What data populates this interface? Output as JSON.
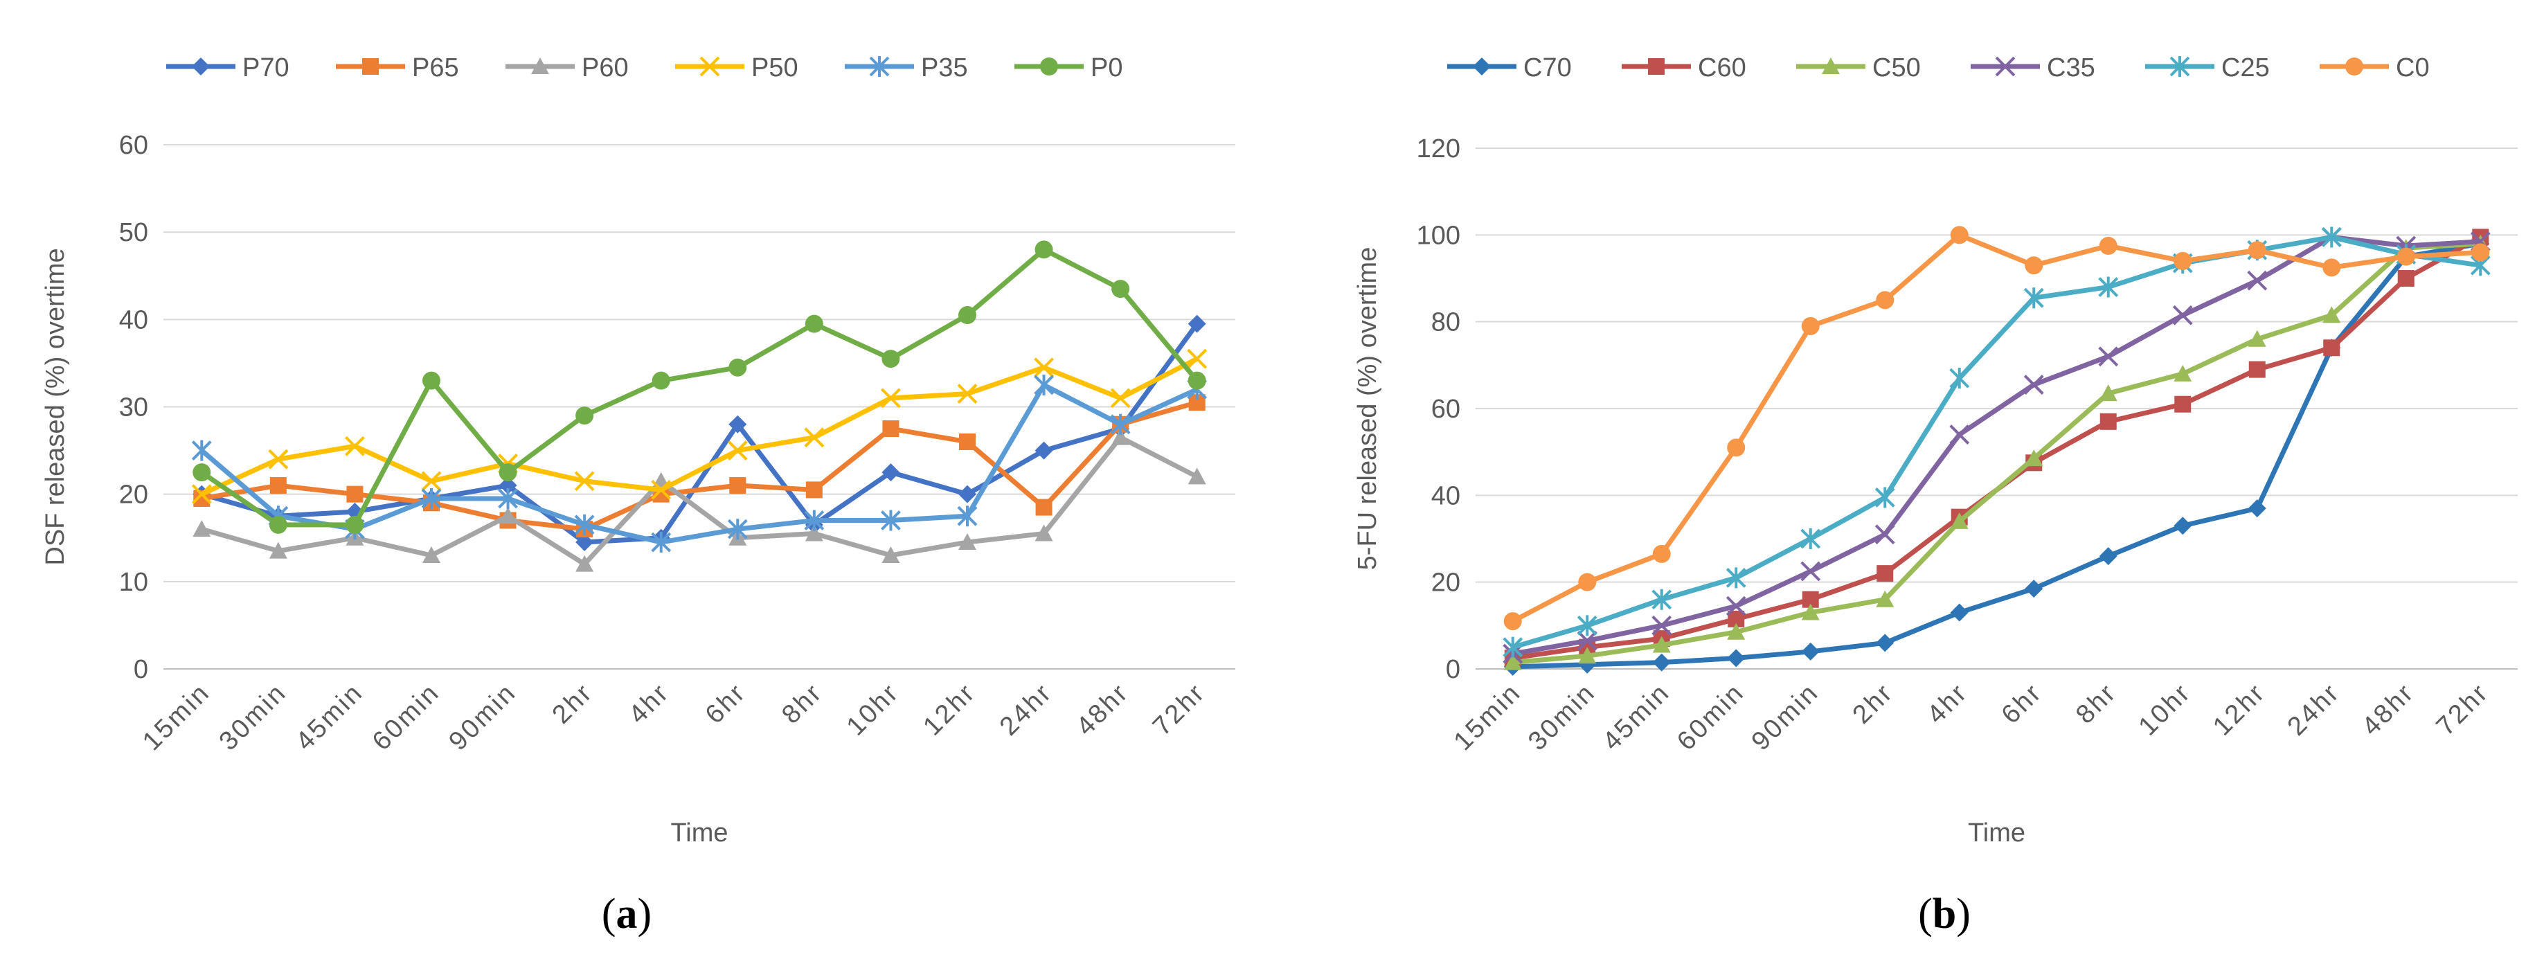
{
  "chart_data": [
    {
      "type": "line",
      "panel_label": "(a)",
      "title": "",
      "xlabel": "Time",
      "ylabel": "DSF released (%) overtime",
      "ylim": [
        0,
        60
      ],
      "yticks": [
        0,
        10,
        20,
        30,
        40,
        50,
        60
      ],
      "grid": true,
      "legend_position": "top",
      "categories": [
        "15min",
        "30min",
        "45min",
        "60min",
        "90min",
        "2hr",
        "4hr",
        "6hr",
        "8hr",
        "10hr",
        "12hr",
        "24hr",
        "48hr",
        "72hr"
      ],
      "series": [
        {
          "name": "P70",
          "color": "#4472c4",
          "marker": "diamond",
          "values": [
            20,
            17.5,
            18,
            19.5,
            21,
            14.5,
            15,
            28,
            16.5,
            22.5,
            20,
            25,
            27.5,
            39.5
          ]
        },
        {
          "name": "P65",
          "color": "#ed7d31",
          "marker": "square",
          "values": [
            19.5,
            21,
            20,
            19,
            17,
            16,
            20,
            21,
            20.5,
            27.5,
            26,
            18.5,
            28,
            30.5
          ]
        },
        {
          "name": "P60",
          "color": "#a5a5a5",
          "marker": "triangle",
          "values": [
            16,
            13.5,
            15,
            13,
            17.5,
            12,
            21.5,
            15,
            15.5,
            13,
            14.5,
            15.5,
            26.5,
            22
          ]
        },
        {
          "name": "P50",
          "color": "#ffc000",
          "marker": "x",
          "values": [
            20,
            24,
            25.5,
            21.5,
            23.5,
            21.5,
            20.5,
            25,
            26.5,
            31,
            31.5,
            34.5,
            31,
            35.5
          ]
        },
        {
          "name": "P35",
          "color": "#5b9bd5",
          "marker": "asterisk",
          "values": [
            25,
            17.5,
            16,
            19.5,
            19.5,
            16.5,
            14.5,
            16,
            17,
            17,
            17.5,
            32.5,
            28,
            32
          ]
        },
        {
          "name": "P0",
          "color": "#70ad47",
          "marker": "circle",
          "values": [
            22.5,
            16.5,
            16.5,
            33,
            22.5,
            29,
            33,
            34.5,
            39.5,
            35.5,
            40.5,
            48,
            43.5,
            33
          ]
        }
      ]
    },
    {
      "type": "line",
      "panel_label": "(b)",
      "title": "",
      "xlabel": "Time",
      "ylabel": "5-FU released (%) overtime",
      "ylim": [
        0,
        120
      ],
      "yticks": [
        0,
        20,
        40,
        60,
        80,
        100,
        120
      ],
      "grid": true,
      "legend_position": "top",
      "categories": [
        "15min",
        "30min",
        "45min",
        "60min",
        "90min",
        "2hr",
        "4hr",
        "6hr",
        "8hr",
        "10hr",
        "12hr",
        "24hr",
        "48hr",
        "72hr"
      ],
      "series": [
        {
          "name": "C70",
          "color": "#2e75b6",
          "marker": "diamond",
          "values": [
            0.5,
            1,
            1.5,
            2.5,
            4,
            6,
            13,
            18.5,
            26,
            33,
            37,
            74,
            95,
            98
          ]
        },
        {
          "name": "C60",
          "color": "#c0504d",
          "marker": "square",
          "values": [
            2.5,
            5,
            7,
            11.5,
            16,
            22,
            35,
            47.5,
            57,
            61,
            69,
            74,
            90,
            99.5
          ]
        },
        {
          "name": "C50",
          "color": "#9bbb59",
          "marker": "triangle",
          "values": [
            1.5,
            3,
            5.5,
            8.5,
            13,
            16,
            34,
            48.5,
            63.5,
            68,
            76,
            81.5,
            97,
            98
          ]
        },
        {
          "name": "C35",
          "color": "#8064a2",
          "marker": "x",
          "values": [
            3.5,
            6.5,
            10,
            14.5,
            22.5,
            31,
            54,
            65.5,
            72,
            81.5,
            89.5,
            99.5,
            97.5,
            98.5
          ]
        },
        {
          "name": "C25",
          "color": "#4bacc6",
          "marker": "asterisk",
          "values": [
            5,
            10,
            16,
            21,
            30,
            39.5,
            67,
            85.5,
            88,
            93.5,
            96.5,
            99.5,
            95.5,
            93
          ]
        },
        {
          "name": "C0",
          "color": "#f79646",
          "marker": "circle",
          "values": [
            11,
            20,
            26.5,
            51,
            79,
            85,
            100,
            93,
            97.5,
            94,
            96.5,
            92.5,
            95,
            96
          ]
        }
      ]
    }
  ]
}
